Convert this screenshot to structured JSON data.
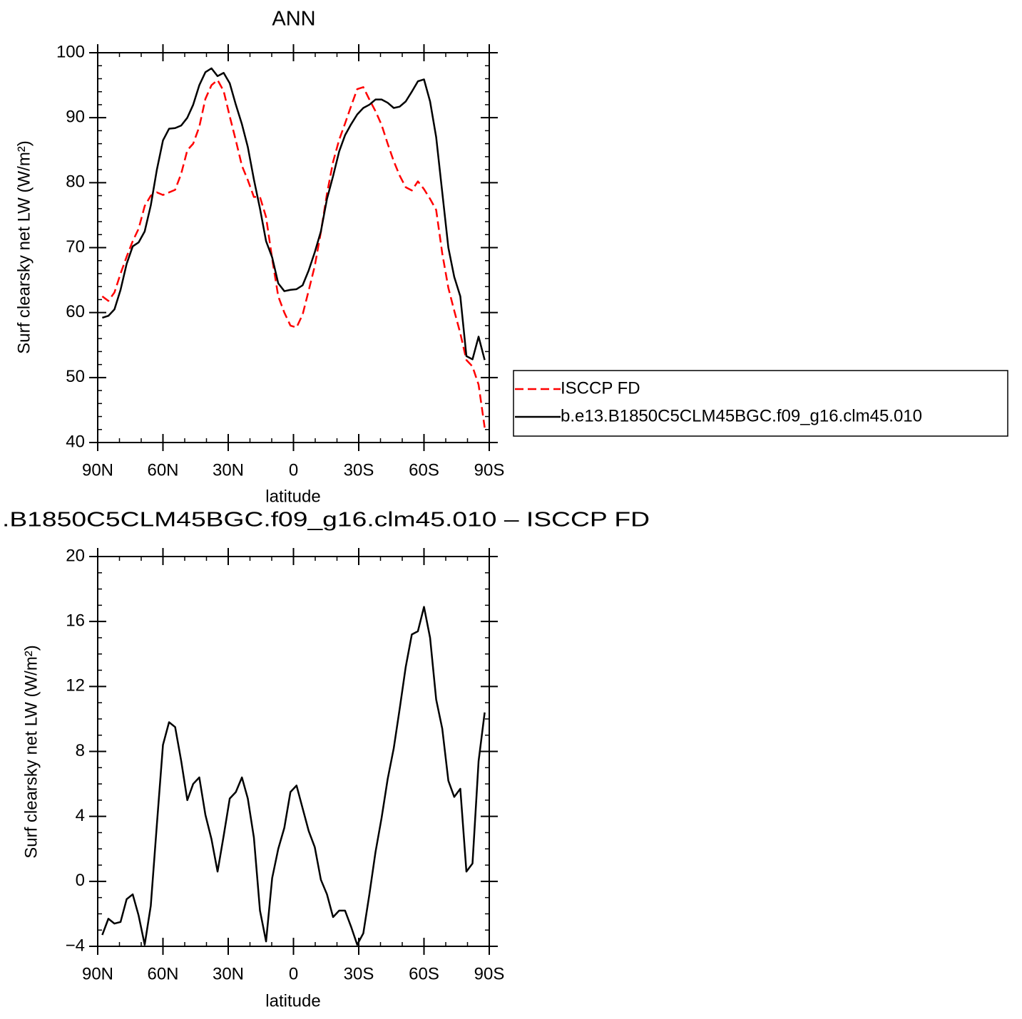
{
  "chart_data": [
    {
      "type": "line",
      "title": "ANN",
      "xlabel": "latitude",
      "ylabel": "Surf clearsky net LW (W/m²)",
      "x": [
        87.9,
        85.1,
        82.3,
        79.5,
        76.7,
        73.9,
        71.2,
        68.4,
        65.6,
        62.8,
        60.0,
        57.2,
        54.4,
        51.6,
        48.8,
        46.1,
        43.3,
        40.5,
        37.7,
        34.9,
        32.1,
        29.3,
        26.5,
        23.7,
        21.0,
        18.2,
        15.4,
        12.6,
        9.8,
        7.0,
        4.2,
        1.4,
        -1.4,
        -4.2,
        -7.0,
        -9.8,
        -12.6,
        -15.4,
        -18.2,
        -21.0,
        -23.7,
        -26.5,
        -29.3,
        -32.1,
        -34.9,
        -37.7,
        -40.5,
        -43.3,
        -46.1,
        -48.8,
        -51.6,
        -54.4,
        -57.2,
        -60.0,
        -62.8,
        -65.6,
        -68.4,
        -71.2,
        -73.9,
        -76.7,
        -79.5,
        -82.3,
        -85.1,
        -87.9
      ],
      "xlim": [
        90,
        -90
      ],
      "xticks": [
        {
          "value": 90,
          "label": "90N"
        },
        {
          "value": 60,
          "label": "60N"
        },
        {
          "value": 30,
          "label": "30N"
        },
        0,
        {
          "value": -30,
          "label": "30S"
        },
        {
          "value": -60,
          "label": "60S"
        },
        {
          "value": -90,
          "label": "90S"
        }
      ],
      "ylim": [
        40,
        100
      ],
      "yticks": [
        40,
        50,
        60,
        70,
        80,
        90,
        100
      ],
      "legend": "right",
      "series": [
        {
          "name": "ISCCP FD",
          "color": "#ff0000",
          "dash": true,
          "values": [
            62.5,
            61.8,
            63.1,
            66.0,
            68.6,
            71.0,
            72.9,
            76.4,
            78.0,
            78.5,
            78.1,
            78.5,
            78.9,
            81.4,
            85.0,
            86.0,
            88.6,
            92.9,
            95.0,
            95.8,
            94.1,
            90.2,
            86.5,
            82.6,
            80.4,
            77.8,
            77.8,
            74.7,
            68.3,
            62.5,
            60.0,
            58.0,
            57.7,
            59.7,
            63.4,
            67.2,
            72.4,
            78.3,
            83.2,
            86.6,
            89.1,
            91.8,
            94.4,
            94.7,
            92.8,
            91.0,
            88.9,
            86.0,
            83.3,
            81.1,
            79.3,
            78.8,
            80.2,
            79.0,
            77.5,
            75.8,
            69.1,
            63.8,
            60.3,
            56.8,
            52.7,
            51.7,
            48.9,
            42.3
          ]
        },
        {
          "name": "b.e13.B1850C5CLM45BGC.f09_g16.clm45.010",
          "color": "#000000",
          "dash": false,
          "values": [
            59.2,
            59.5,
            60.5,
            63.5,
            67.5,
            70.2,
            70.8,
            72.5,
            76.5,
            82,
            86.5,
            88.3,
            88.4,
            88.8,
            90,
            92,
            95,
            97,
            97.6,
            96.4,
            96.9,
            95.3,
            92,
            89,
            85.5,
            80.5,
            76,
            71,
            68.5,
            64.5,
            63.3,
            63.5,
            63.6,
            64.2,
            66.5,
            69.3,
            72.5,
            77.5,
            81,
            84.8,
            87.3,
            89,
            90.5,
            91.5,
            92,
            92.8,
            92.8,
            92.3,
            91.5,
            91.7,
            92.5,
            94,
            95.6,
            95.9,
            92.5,
            87,
            78.5,
            70,
            65.5,
            62.5,
            53.3,
            52.8,
            56.3,
            52.7
          ]
        }
      ]
    },
    {
      "type": "line",
      "title": ".B1850C5CLM45BGC.f09_g16.clm45.010 – ISCCP FD",
      "xlabel": "latitude",
      "ylabel": "Surf clearsky net LW (W/m²)",
      "x": [
        87.9,
        85.1,
        82.3,
        79.5,
        76.7,
        73.9,
        71.2,
        68.4,
        65.6,
        62.8,
        60.0,
        57.2,
        54.4,
        51.6,
        48.8,
        46.1,
        43.3,
        40.5,
        37.7,
        34.9,
        32.1,
        29.3,
        26.5,
        23.7,
        21.0,
        18.2,
        15.4,
        12.6,
        9.8,
        7.0,
        4.2,
        1.4,
        -1.4,
        -4.2,
        -7.0,
        -9.8,
        -12.6,
        -15.4,
        -18.2,
        -21.0,
        -23.7,
        -26.5,
        -29.3,
        -32.1,
        -34.9,
        -37.7,
        -40.5,
        -43.3,
        -46.1,
        -48.8,
        -51.6,
        -54.4,
        -57.2,
        -60.0,
        -62.8,
        -65.6,
        -68.4,
        -71.2,
        -73.9,
        -76.7,
        -79.5,
        -82.3,
        -85.1,
        -87.9
      ],
      "xlim": [
        90,
        -90
      ],
      "xticks": [
        {
          "value": 90,
          "label": "90N"
        },
        {
          "value": 60,
          "label": "60N"
        },
        {
          "value": 30,
          "label": "30N"
        },
        0,
        {
          "value": -30,
          "label": "30S"
        },
        {
          "value": -60,
          "label": "60S"
        },
        {
          "value": -90,
          "label": "90S"
        }
      ],
      "ylim": [
        -4,
        20
      ],
      "yticks": [
        {
          "value": -4,
          "label": "−4"
        },
        0,
        4,
        8,
        12,
        16,
        20
      ],
      "series": [
        {
          "color": "#000000",
          "dash": false,
          "values": [
            -3.3,
            -2.3,
            -2.6,
            -2.5,
            -1.1,
            -0.8,
            -2.1,
            -3.9,
            -1.5,
            3.5,
            8.4,
            9.8,
            9.5,
            7.4,
            5.0,
            6.0,
            6.4,
            4.1,
            2.6,
            0.6,
            2.8,
            5.1,
            5.5,
            6.4,
            5.1,
            2.7,
            -1.8,
            -3.7,
            0.2,
            2.0,
            3.3,
            5.5,
            5.9,
            4.5,
            3.1,
            2.1,
            0.1,
            -0.8,
            -2.2,
            -1.8,
            -1.8,
            -2.8,
            -3.9,
            -3.2,
            -0.8,
            1.8,
            3.9,
            6.3,
            8.2,
            10.6,
            13.2,
            15.2,
            15.4,
            16.9,
            15.0,
            11.2,
            9.4,
            6.2,
            5.2,
            5.7,
            0.6,
            1.1,
            7.4,
            10.4
          ]
        }
      ]
    }
  ]
}
